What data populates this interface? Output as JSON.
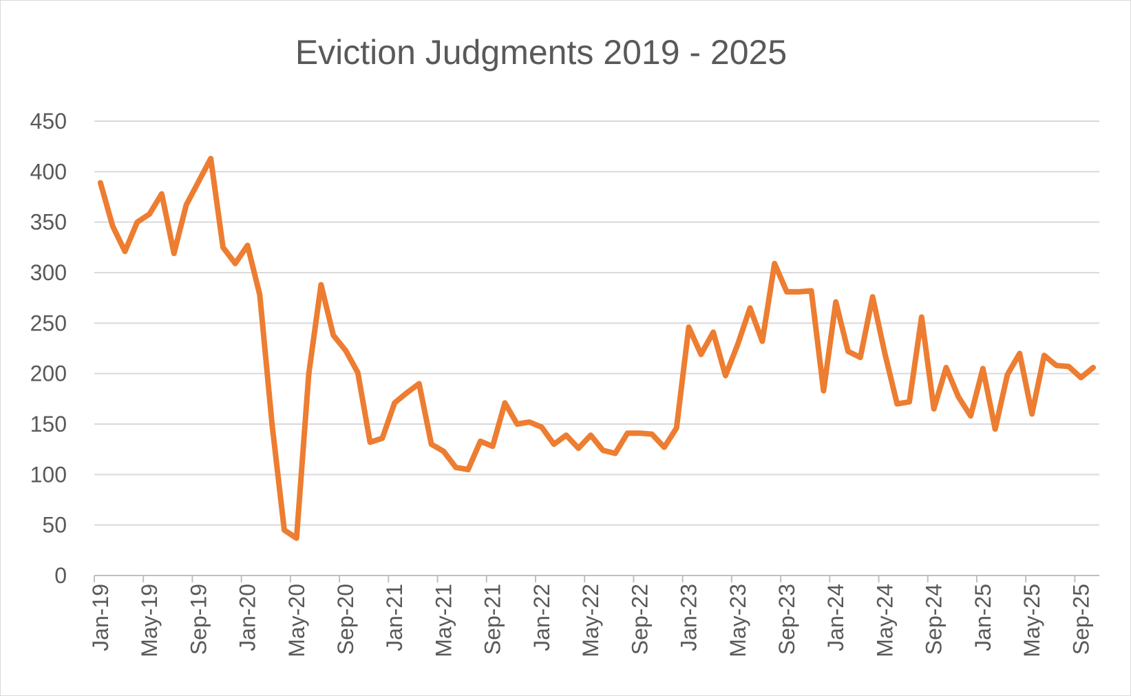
{
  "chart_data": {
    "type": "line",
    "title": "Eviction Judgments 2019 - 2025",
    "xlabel": "",
    "ylabel": "",
    "ylim": [
      0,
      450
    ],
    "yticks": [
      0,
      50,
      100,
      150,
      200,
      250,
      300,
      350,
      400,
      450
    ],
    "grid": true,
    "legend": "none",
    "tick_labels": [
      "Jan-19",
      "May-19",
      "Sep-19",
      "Jan-20",
      "May-20",
      "Sep-20",
      "Jan-21",
      "May-21",
      "Sep-21",
      "Jan-22",
      "May-22",
      "Sep-22",
      "Jan-23",
      "May-23",
      "Sep-23",
      "Jan-24",
      "May-24",
      "Sep-24",
      "Jan-25",
      "May-25",
      "Sep-25"
    ],
    "series": [
      {
        "name": "Eviction Judgments",
        "color": "#ED7D31",
        "x": [
          "Jan-19",
          "Feb-19",
          "Mar-19",
          "Apr-19",
          "May-19",
          "Jun-19",
          "Jul-19",
          "Aug-19",
          "Sep-19",
          "Oct-19",
          "Nov-19",
          "Dec-19",
          "Jan-20",
          "Feb-20",
          "Mar-20",
          "Apr-20",
          "May-20",
          "Jun-20",
          "Jul-20",
          "Aug-20",
          "Sep-20",
          "Oct-20",
          "Nov-20",
          "Dec-20",
          "Jan-21",
          "Feb-21",
          "Mar-21",
          "Apr-21",
          "May-21",
          "Jun-21",
          "Jul-21",
          "Aug-21",
          "Sep-21",
          "Oct-21",
          "Nov-21",
          "Dec-21",
          "Jan-22",
          "Feb-22",
          "Mar-22",
          "Apr-22",
          "May-22",
          "Jun-22",
          "Jul-22",
          "Aug-22",
          "Sep-22",
          "Oct-22",
          "Nov-22",
          "Dec-22",
          "Jan-23",
          "Feb-23",
          "Mar-23",
          "Apr-23",
          "May-23",
          "Jun-23",
          "Jul-23",
          "Aug-23",
          "Sep-23",
          "Oct-23",
          "Nov-23",
          "Dec-23",
          "Jan-24",
          "Feb-24",
          "Mar-24",
          "Apr-24",
          "May-24",
          "Jun-24",
          "Jul-24",
          "Aug-24",
          "Sep-24",
          "Oct-24",
          "Nov-24",
          "Dec-24",
          "Jan-25",
          "Feb-25",
          "Mar-25",
          "Apr-25",
          "May-25",
          "Jun-25",
          "Jul-25",
          "Aug-25",
          "Sep-25",
          "Oct-25"
        ],
        "values": [
          389,
          346,
          321,
          350,
          358,
          378,
          319,
          367,
          390,
          413,
          325,
          309,
          327,
          278,
          150,
          45,
          37,
          200,
          288,
          238,
          223,
          201,
          132,
          136,
          171,
          181,
          190,
          130,
          123,
          107,
          105,
          133,
          128,
          171,
          150,
          152,
          147,
          130,
          139,
          126,
          139,
          124,
          121,
          141,
          141,
          140,
          127,
          146,
          246,
          219,
          241,
          198,
          229,
          265,
          232,
          309,
          281,
          281,
          282,
          183,
          271,
          222,
          216,
          276,
          220,
          170,
          172,
          256,
          165,
          206,
          177,
          158,
          205,
          145,
          199,
          220,
          160,
          218,
          208,
          207,
          196,
          206
        ]
      }
    ]
  }
}
